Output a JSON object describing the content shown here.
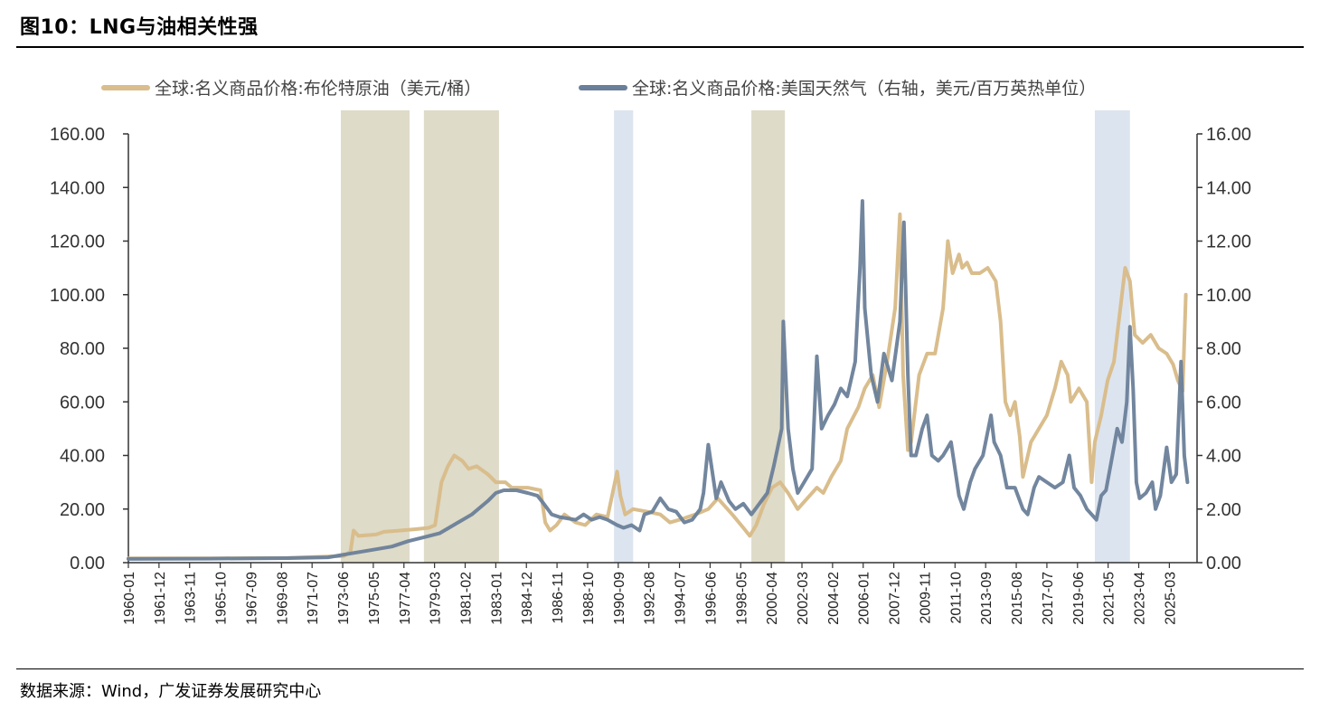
{
  "header": {
    "title": "图10：LNG与油相关性强"
  },
  "footer": {
    "source": "数据来源：Wind，广发证券发展研究中心"
  },
  "colors": {
    "oil": "#D9BD8C",
    "gas": "#6A7F99",
    "shade_tan": "#DEDBC8",
    "shade_blue": "#DCE4EF",
    "axis": "#333333"
  },
  "chart_data": {
    "type": "line",
    "title": "LNG与油相关性强",
    "x_range": [
      1960.0,
      2026.9
    ],
    "ylim_left": [
      0,
      160
    ],
    "ylim_right": [
      0,
      16
    ],
    "left_ticks": [
      "0.00",
      "20.00",
      "40.00",
      "60.00",
      "80.00",
      "100.00",
      "120.00",
      "140.00",
      "160.00"
    ],
    "right_ticks": [
      "0.00",
      "2.00",
      "4.00",
      "6.00",
      "8.00",
      "10.00",
      "12.00",
      "14.00",
      "16.00"
    ],
    "x_tick_labels": [
      "1960-01",
      "1961-12",
      "1963-11",
      "1965-10",
      "1967-09",
      "1969-08",
      "1971-07",
      "1973-06",
      "1975-05",
      "1977-04",
      "1979-03",
      "1981-02",
      "1983-01",
      "1984-12",
      "1986-11",
      "1988-10",
      "1990-09",
      "1992-08",
      "1994-07",
      "1996-06",
      "1998-05",
      "2000-04",
      "2002-03",
      "2004-02",
      "2006-01",
      "2007-12",
      "2009-11",
      "2011-10",
      "2013-09",
      "2015-08",
      "2017-07",
      "2019-06",
      "2021-05",
      "2023-04",
      "2025-03"
    ],
    "legend_position": "top",
    "shaded_periods": [
      {
        "start": 1973.3,
        "end": 1977.6,
        "color": "tan"
      },
      {
        "start": 1978.5,
        "end": 1983.2,
        "color": "tan"
      },
      {
        "start": 1990.4,
        "end": 1991.6,
        "color": "blue"
      },
      {
        "start": 1999.0,
        "end": 2001.1,
        "color": "tan"
      },
      {
        "start": 2020.5,
        "end": 2022.7,
        "color": "blue"
      }
    ],
    "series": [
      {
        "name": "全球:名义商品价格:布伦特原油（美元/桶）",
        "axis": "left",
        "x": [
          1960,
          1965,
          1970,
          1973.5,
          1973.9,
          1974.1,
          1974.4,
          1975.5,
          1976,
          1977,
          1978,
          1978.8,
          1979.2,
          1979.6,
          1980.0,
          1980.4,
          1980.9,
          1981.3,
          1981.8,
          1982.5,
          1983,
          1983.6,
          1984,
          1985,
          1985.8,
          1986.1,
          1986.4,
          1986.8,
          1987.3,
          1988,
          1988.6,
          1989.3,
          1990.0,
          1990.6,
          1990.8,
          1991.1,
          1991.6,
          1992.5,
          1993.3,
          1993.9,
          1994.5,
          1995.5,
          1996.3,
          1996.9,
          1997.8,
          1998.5,
          1998.9,
          1999.3,
          1999.8,
          2000.3,
          2000.8,
          2001.3,
          2001.9,
          2002.5,
          2003.1,
          2003.5,
          2004.0,
          2004.6,
          2005.0,
          2005.7,
          2006.1,
          2006.6,
          2007.0,
          2007.5,
          2008.0,
          2008.3,
          2008.5,
          2008.8,
          2009.0,
          2009.5,
          2010.0,
          2010.5,
          2011.0,
          2011.3,
          2011.6,
          2012.0,
          2012.2,
          2012.5,
          2012.8,
          2013.3,
          2013.8,
          2014.3,
          2014.6,
          2014.9,
          2015.2,
          2015.5,
          2015.8,
          2016.0,
          2016.5,
          2017.0,
          2017.5,
          2018.0,
          2018.4,
          2018.8,
          2019.0,
          2019.5,
          2020.0,
          2020.3,
          2020.5,
          2020.9,
          2021.3,
          2021.7,
          2022.1,
          2022.4,
          2022.7,
          2023.0,
          2023.5,
          2024.0,
          2024.5,
          2025.0,
          2025.4,
          2025.7,
          2026.0,
          2026.2
        ],
        "y": [
          1.6,
          1.6,
          1.8,
          2.5,
          4,
          12,
          10,
          10.5,
          11.5,
          12,
          12.5,
          13,
          14,
          30,
          36,
          40,
          38,
          35,
          36,
          33,
          30,
          30,
          28,
          28,
          27,
          15,
          12,
          14,
          18,
          15,
          14,
          18,
          17,
          34,
          25,
          18,
          20,
          19,
          18,
          15,
          16,
          18,
          20,
          24,
          18,
          13,
          10,
          14,
          22,
          28,
          30,
          26,
          20,
          24,
          28,
          26,
          32,
          38,
          50,
          58,
          65,
          70,
          58,
          75,
          95,
          130,
          70,
          42,
          45,
          70,
          78,
          78,
          95,
          120,
          108,
          115,
          110,
          112,
          108,
          108,
          110,
          105,
          90,
          60,
          55,
          60,
          47,
          32,
          45,
          50,
          55,
          65,
          75,
          70,
          60,
          65,
          60,
          30,
          45,
          55,
          68,
          75,
          95,
          110,
          105,
          85,
          82,
          85,
          80,
          78,
          74,
          68,
          64,
          100
        ]
      },
      {
        "name": "全球:名义商品价格:美国天然气（右轴，美元/百万英热单位）",
        "axis": "right",
        "x": [
          1960,
          1965,
          1970,
          1972.5,
          1973.5,
          1975,
          1976.5,
          1977.5,
          1978.5,
          1979.5,
          1980.5,
          1981.5,
          1982.5,
          1983.0,
          1983.5,
          1984.3,
          1985.0,
          1985.6,
          1986.0,
          1986.5,
          1987.0,
          1988.0,
          1988.5,
          1989.0,
          1989.5,
          1990.0,
          1990.6,
          1991.0,
          1991.5,
          1992.0,
          1992.3,
          1992.8,
          1993.3,
          1993.8,
          1994.3,
          1994.8,
          1995.3,
          1995.8,
          1996.0,
          1996.3,
          1996.8,
          1997.1,
          1997.6,
          1998.0,
          1998.5,
          1999.0,
          1999.5,
          2000.0,
          2000.4,
          2000.9,
          2001.0,
          2001.3,
          2001.6,
          2001.9,
          2002.3,
          2002.8,
          2003.1,
          2003.4,
          2003.8,
          2004.2,
          2004.6,
          2005.0,
          2005.5,
          2005.8,
          2005.95,
          2006.1,
          2006.5,
          2006.9,
          2007.3,
          2007.8,
          2008.3,
          2008.55,
          2008.8,
          2009.0,
          2009.3,
          2009.7,
          2010.0,
          2010.3,
          2010.7,
          2011.0,
          2011.5,
          2012.0,
          2012.3,
          2012.7,
          2013.0,
          2013.5,
          2014.0,
          2014.2,
          2014.6,
          2015.0,
          2015.5,
          2016.0,
          2016.3,
          2016.7,
          2017.0,
          2017.5,
          2018.0,
          2018.5,
          2018.9,
          2019.2,
          2019.6,
          2020.0,
          2020.3,
          2020.6,
          2020.9,
          2021.2,
          2021.6,
          2021.9,
          2022.2,
          2022.5,
          2022.7,
          2022.9,
          2023.1,
          2023.3,
          2023.7,
          2024.1,
          2024.3,
          2024.6,
          2025.0,
          2025.3,
          2025.6,
          2025.9,
          2026.1,
          2026.3
        ],
        "y": [
          0.14,
          0.15,
          0.17,
          0.2,
          0.3,
          0.45,
          0.6,
          0.8,
          0.95,
          1.1,
          1.45,
          1.8,
          2.3,
          2.6,
          2.7,
          2.7,
          2.6,
          2.5,
          2.2,
          1.8,
          1.7,
          1.6,
          1.8,
          1.6,
          1.7,
          1.6,
          1.4,
          1.3,
          1.4,
          1.2,
          1.8,
          1.9,
          2.4,
          2.0,
          1.9,
          1.5,
          1.6,
          2.0,
          2.6,
          4.4,
          2.4,
          3.0,
          2.3,
          2.0,
          2.2,
          1.8,
          2.2,
          2.6,
          3.6,
          5.0,
          9.0,
          5.0,
          3.5,
          2.6,
          3.0,
          3.5,
          7.7,
          5.0,
          5.5,
          5.9,
          6.5,
          6.2,
          7.5,
          11.0,
          13.5,
          9.5,
          7.0,
          6.0,
          7.8,
          6.8,
          9.0,
          12.7,
          7.0,
          4.0,
          4.0,
          5.0,
          5.5,
          4.0,
          3.8,
          4.0,
          4.5,
          2.5,
          2.0,
          3.0,
          3.5,
          4.0,
          5.5,
          4.5,
          4.0,
          2.8,
          2.8,
          2.0,
          1.8,
          2.8,
          3.2,
          3.0,
          2.8,
          3.0,
          4.0,
          2.8,
          2.5,
          2.0,
          1.8,
          1.6,
          2.5,
          2.7,
          4.0,
          5.0,
          4.5,
          6.0,
          8.8,
          6.5,
          3.0,
          2.4,
          2.6,
          3.0,
          2.0,
          2.5,
          4.3,
          3.0,
          3.3,
          7.5,
          4.0,
          3.0
        ]
      }
    ]
  }
}
